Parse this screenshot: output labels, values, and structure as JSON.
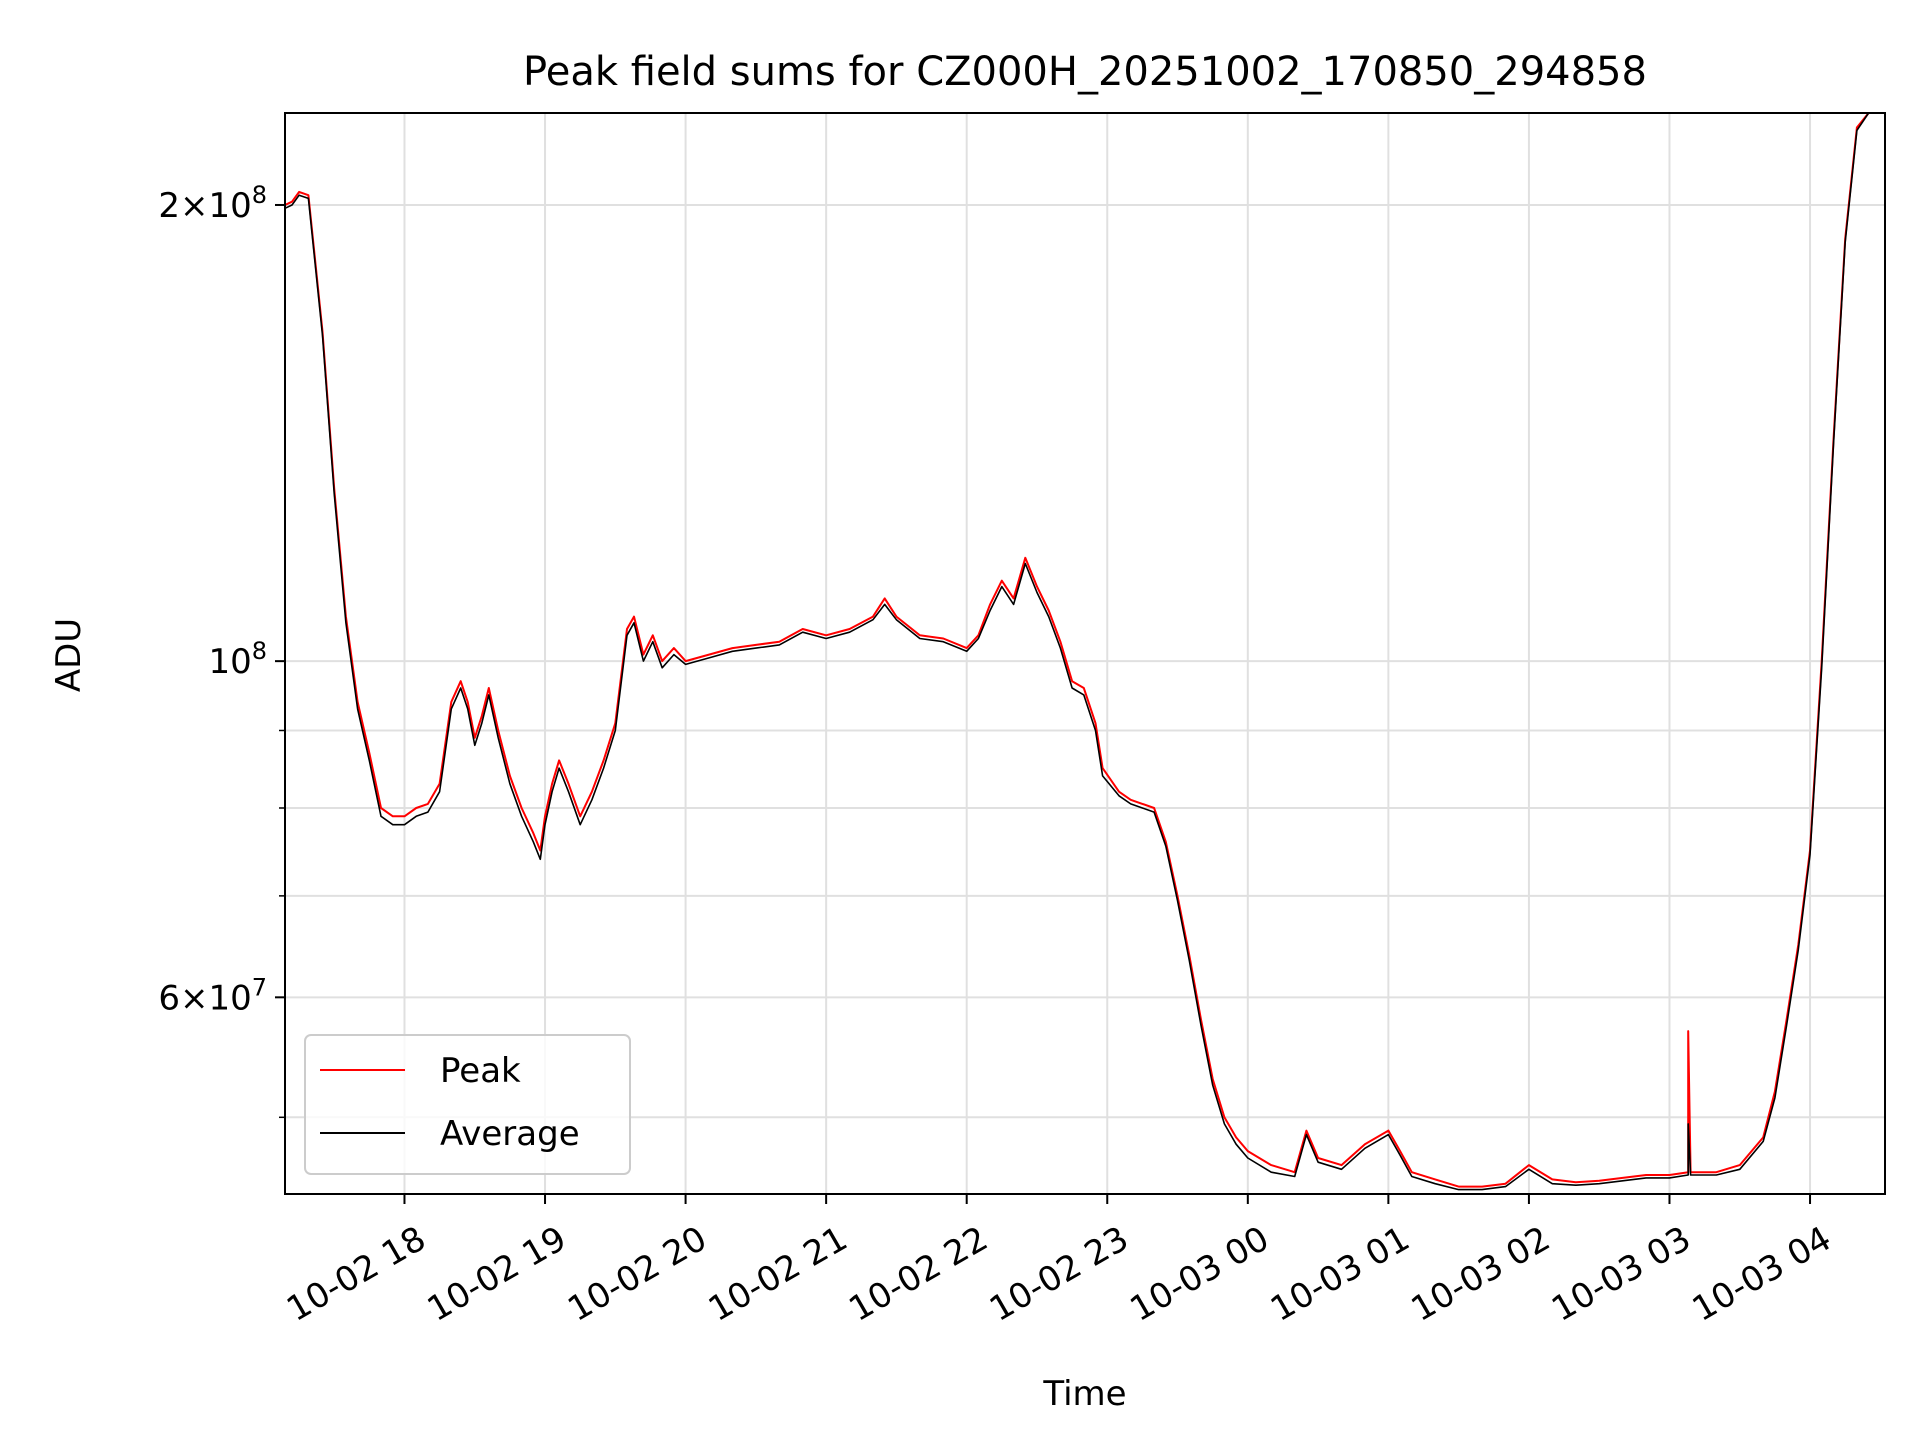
{
  "chart_data": {
    "type": "line",
    "title": "Peak field sums for CZ000H_20251002_170850_294858",
    "xlabel": "Time",
    "ylabel": "ADU",
    "yscale": "log",
    "grid": true,
    "legend_position": "lower-left",
    "xlim": [
      "2025-10-02 17:09",
      "2025-10-03 04:32"
    ],
    "ylim": [
      44500000,
      230000000
    ],
    "x_ticks": [
      {
        "value": "2025-10-02 18:00",
        "label": "10-02 18"
      },
      {
        "value": "2025-10-02 19:00",
        "label": "10-02 19"
      },
      {
        "value": "2025-10-02 20:00",
        "label": "10-02 20"
      },
      {
        "value": "2025-10-02 21:00",
        "label": "10-02 21"
      },
      {
        "value": "2025-10-02 22:00",
        "label": "10-02 22"
      },
      {
        "value": "2025-10-02 23:00",
        "label": "10-02 23"
      },
      {
        "value": "2025-10-03 00:00",
        "label": "10-03 00"
      },
      {
        "value": "2025-10-03 01:00",
        "label": "10-03 01"
      },
      {
        "value": "2025-10-03 02:00",
        "label": "10-03 02"
      },
      {
        "value": "2025-10-03 03:00",
        "label": "10-03 03"
      },
      {
        "value": "2025-10-03 04:00",
        "label": "10-03 04"
      }
    ],
    "y_major_ticks": [
      {
        "value": 60000000,
        "mantissa": "6",
        "exponent": "7"
      },
      {
        "value": 100000000,
        "mantissa": "",
        "exponent": "8"
      },
      {
        "value": 200000000,
        "mantissa": "2",
        "exponent": "8"
      }
    ],
    "y_minor_ticks": [
      50000000,
      70000000,
      80000000,
      90000000
    ],
    "series": [
      {
        "name": "Peak",
        "color": "#ff0000",
        "points": [
          [
            "2025-10-02 17:09",
            200000000
          ],
          [
            "2025-10-02 17:12",
            201000000
          ],
          [
            "2025-10-02 17:15",
            204000000
          ],
          [
            "2025-10-02 17:19",
            203000000
          ],
          [
            "2025-10-02 17:25",
            165000000
          ],
          [
            "2025-10-02 17:30",
            130000000
          ],
          [
            "2025-10-02 17:35",
            107000000
          ],
          [
            "2025-10-02 17:40",
            94000000
          ],
          [
            "2025-10-02 17:45",
            87000000
          ],
          [
            "2025-10-02 17:50",
            80000000
          ],
          [
            "2025-10-02 17:55",
            79000000
          ],
          [
            "2025-10-02 18:00",
            79000000
          ],
          [
            "2025-10-02 18:05",
            80000000
          ],
          [
            "2025-10-02 18:10",
            80500000
          ],
          [
            "2025-10-02 18:15",
            83000000
          ],
          [
            "2025-10-02 18:20",
            94000000
          ],
          [
            "2025-10-02 18:24",
            97000000
          ],
          [
            "2025-10-02 18:27",
            94000000
          ],
          [
            "2025-10-02 18:30",
            89000000
          ],
          [
            "2025-10-02 18:33",
            92000000
          ],
          [
            "2025-10-02 18:36",
            96000000
          ],
          [
            "2025-10-02 18:40",
            90000000
          ],
          [
            "2025-10-02 18:45",
            84000000
          ],
          [
            "2025-10-02 18:50",
            80000000
          ],
          [
            "2025-10-02 18:55",
            77000000
          ],
          [
            "2025-10-02 18:58",
            75000000
          ],
          [
            "2025-10-02 19:00",
            79000000
          ],
          [
            "2025-10-02 19:03",
            83000000
          ],
          [
            "2025-10-02 19:06",
            86000000
          ],
          [
            "2025-10-02 19:10",
            83000000
          ],
          [
            "2025-10-02 19:15",
            79000000
          ],
          [
            "2025-10-02 19:20",
            82000000
          ],
          [
            "2025-10-02 19:25",
            86000000
          ],
          [
            "2025-10-02 19:30",
            91000000
          ],
          [
            "2025-10-02 19:35",
            105000000
          ],
          [
            "2025-10-02 19:38",
            107000000
          ],
          [
            "2025-10-02 19:42",
            101000000
          ],
          [
            "2025-10-02 19:46",
            104000000
          ],
          [
            "2025-10-02 19:50",
            100000000
          ],
          [
            "2025-10-02 19:55",
            102000000
          ],
          [
            "2025-10-02 20:00",
            100000000
          ],
          [
            "2025-10-02 20:10",
            101000000
          ],
          [
            "2025-10-02 20:20",
            102000000
          ],
          [
            "2025-10-02 20:30",
            102500000
          ],
          [
            "2025-10-02 20:40",
            103000000
          ],
          [
            "2025-10-02 20:50",
            105000000
          ],
          [
            "2025-10-02 21:00",
            104000000
          ],
          [
            "2025-10-02 21:10",
            105000000
          ],
          [
            "2025-10-02 21:20",
            107000000
          ],
          [
            "2025-10-02 21:25",
            110000000
          ],
          [
            "2025-10-02 21:30",
            107000000
          ],
          [
            "2025-10-02 21:40",
            104000000
          ],
          [
            "2025-10-02 21:50",
            103500000
          ],
          [
            "2025-10-02 22:00",
            102000000
          ],
          [
            "2025-10-02 22:05",
            104000000
          ],
          [
            "2025-10-02 22:10",
            109000000
          ],
          [
            "2025-10-02 22:15",
            113000000
          ],
          [
            "2025-10-02 22:20",
            110000000
          ],
          [
            "2025-10-02 22:25",
            117000000
          ],
          [
            "2025-10-02 22:30",
            112000000
          ],
          [
            "2025-10-02 22:35",
            108000000
          ],
          [
            "2025-10-02 22:40",
            103000000
          ],
          [
            "2025-10-02 22:45",
            97000000
          ],
          [
            "2025-10-02 22:50",
            96000000
          ],
          [
            "2025-10-02 22:55",
            91000000
          ],
          [
            "2025-10-02 22:58",
            85000000
          ],
          [
            "2025-10-02 23:05",
            82000000
          ],
          [
            "2025-10-02 23:10",
            81000000
          ],
          [
            "2025-10-02 23:15",
            80500000
          ],
          [
            "2025-10-02 23:20",
            80000000
          ],
          [
            "2025-10-02 23:25",
            76000000
          ],
          [
            "2025-10-02 23:30",
            70000000
          ],
          [
            "2025-10-02 23:35",
            64000000
          ],
          [
            "2025-10-02 23:40",
            58000000
          ],
          [
            "2025-10-02 23:45",
            53000000
          ],
          [
            "2025-10-02 23:50",
            50000000
          ],
          [
            "2025-10-02 23:55",
            48500000
          ],
          [
            "2025-10-03 00:00",
            47500000
          ],
          [
            "2025-10-03 00:10",
            46500000
          ],
          [
            "2025-10-03 00:20",
            46000000
          ],
          [
            "2025-10-03 00:25",
            49000000
          ],
          [
            "2025-10-03 00:30",
            47000000
          ],
          [
            "2025-10-03 00:40",
            46500000
          ],
          [
            "2025-10-03 00:50",
            48000000
          ],
          [
            "2025-10-03 01:00",
            49000000
          ],
          [
            "2025-10-03 01:05",
            47500000
          ],
          [
            "2025-10-03 01:10",
            46000000
          ],
          [
            "2025-10-03 01:20",
            45500000
          ],
          [
            "2025-10-03 01:30",
            45000000
          ],
          [
            "2025-10-03 01:40",
            45000000
          ],
          [
            "2025-10-03 01:50",
            45200000
          ],
          [
            "2025-10-03 02:00",
            46500000
          ],
          [
            "2025-10-03 02:10",
            45500000
          ],
          [
            "2025-10-03 02:20",
            45300000
          ],
          [
            "2025-10-03 02:30",
            45400000
          ],
          [
            "2025-10-03 02:40",
            45600000
          ],
          [
            "2025-10-03 02:50",
            45800000
          ],
          [
            "2025-10-03 03:00",
            45800000
          ],
          [
            "2025-10-03 03:08",
            46000000
          ],
          [
            "2025-10-03 03:08",
            57000000
          ],
          [
            "2025-10-03 03:09",
            46000000
          ],
          [
            "2025-10-03 03:20",
            46000000
          ],
          [
            "2025-10-03 03:30",
            46500000
          ],
          [
            "2025-10-03 03:40",
            48500000
          ],
          [
            "2025-10-03 03:45",
            52000000
          ],
          [
            "2025-10-03 03:50",
            58000000
          ],
          [
            "2025-10-03 03:55",
            65000000
          ],
          [
            "2025-10-03 04:00",
            75000000
          ],
          [
            "2025-10-03 04:05",
            100000000
          ],
          [
            "2025-10-03 04:10",
            140000000
          ],
          [
            "2025-10-03 04:15",
            190000000
          ],
          [
            "2025-10-03 04:20",
            225000000
          ],
          [
            "2025-10-03 04:25",
            230000000
          ]
        ]
      },
      {
        "name": "Average",
        "color": "#000000",
        "points": [
          [
            "2025-10-02 17:09",
            199000000
          ],
          [
            "2025-10-02 17:12",
            200000000
          ],
          [
            "2025-10-02 17:15",
            203000000
          ],
          [
            "2025-10-02 17:19",
            202000000
          ],
          [
            "2025-10-02 17:25",
            164000000
          ],
          [
            "2025-10-02 17:30",
            129000000
          ],
          [
            "2025-10-02 17:35",
            106000000
          ],
          [
            "2025-10-02 17:40",
            93000000
          ],
          [
            "2025-10-02 17:45",
            86000000
          ],
          [
            "2025-10-02 17:50",
            79000000
          ],
          [
            "2025-10-02 17:55",
            78000000
          ],
          [
            "2025-10-02 18:00",
            78000000
          ],
          [
            "2025-10-02 18:05",
            79000000
          ],
          [
            "2025-10-02 18:10",
            79500000
          ],
          [
            "2025-10-02 18:15",
            82000000
          ],
          [
            "2025-10-02 18:20",
            93000000
          ],
          [
            "2025-10-02 18:24",
            96000000
          ],
          [
            "2025-10-02 18:27",
            93000000
          ],
          [
            "2025-10-02 18:30",
            88000000
          ],
          [
            "2025-10-02 18:33",
            91000000
          ],
          [
            "2025-10-02 18:36",
            95000000
          ],
          [
            "2025-10-02 18:40",
            89000000
          ],
          [
            "2025-10-02 18:45",
            83000000
          ],
          [
            "2025-10-02 18:50",
            79000000
          ],
          [
            "2025-10-02 18:55",
            76000000
          ],
          [
            "2025-10-02 18:58",
            74000000
          ],
          [
            "2025-10-02 19:00",
            78000000
          ],
          [
            "2025-10-02 19:03",
            82000000
          ],
          [
            "2025-10-02 19:06",
            85000000
          ],
          [
            "2025-10-02 19:10",
            82000000
          ],
          [
            "2025-10-02 19:15",
            78000000
          ],
          [
            "2025-10-02 19:20",
            81000000
          ],
          [
            "2025-10-02 19:25",
            85000000
          ],
          [
            "2025-10-02 19:30",
            90000000
          ],
          [
            "2025-10-02 19:35",
            104000000
          ],
          [
            "2025-10-02 19:38",
            106000000
          ],
          [
            "2025-10-02 19:42",
            100000000
          ],
          [
            "2025-10-02 19:46",
            103000000
          ],
          [
            "2025-10-02 19:50",
            99000000
          ],
          [
            "2025-10-02 19:55",
            101000000
          ],
          [
            "2025-10-02 20:00",
            99500000
          ],
          [
            "2025-10-02 20:10",
            100500000
          ],
          [
            "2025-10-02 20:20",
            101500000
          ],
          [
            "2025-10-02 20:30",
            102000000
          ],
          [
            "2025-10-02 20:40",
            102500000
          ],
          [
            "2025-10-02 20:50",
            104500000
          ],
          [
            "2025-10-02 21:00",
            103500000
          ],
          [
            "2025-10-02 21:10",
            104500000
          ],
          [
            "2025-10-02 21:20",
            106500000
          ],
          [
            "2025-10-02 21:25",
            109000000
          ],
          [
            "2025-10-02 21:30",
            106500000
          ],
          [
            "2025-10-02 21:40",
            103500000
          ],
          [
            "2025-10-02 21:50",
            103000000
          ],
          [
            "2025-10-02 22:00",
            101500000
          ],
          [
            "2025-10-02 22:05",
            103500000
          ],
          [
            "2025-10-02 22:10",
            108000000
          ],
          [
            "2025-10-02 22:15",
            112000000
          ],
          [
            "2025-10-02 22:20",
            109000000
          ],
          [
            "2025-10-02 22:25",
            116000000
          ],
          [
            "2025-10-02 22:30",
            111000000
          ],
          [
            "2025-10-02 22:35",
            107000000
          ],
          [
            "2025-10-02 22:40",
            102000000
          ],
          [
            "2025-10-02 22:45",
            96000000
          ],
          [
            "2025-10-02 22:50",
            95000000
          ],
          [
            "2025-10-02 22:55",
            90000000
          ],
          [
            "2025-10-02 22:58",
            84000000
          ],
          [
            "2025-10-02 23:05",
            81500000
          ],
          [
            "2025-10-02 23:10",
            80500000
          ],
          [
            "2025-10-02 23:15",
            80000000
          ],
          [
            "2025-10-02 23:20",
            79500000
          ],
          [
            "2025-10-02 23:25",
            75500000
          ],
          [
            "2025-10-02 23:30",
            69500000
          ],
          [
            "2025-10-02 23:35",
            63500000
          ],
          [
            "2025-10-02 23:40",
            57500000
          ],
          [
            "2025-10-02 23:45",
            52500000
          ],
          [
            "2025-10-02 23:50",
            49500000
          ],
          [
            "2025-10-02 23:55",
            48000000
          ],
          [
            "2025-10-03 00:00",
            47000000
          ],
          [
            "2025-10-03 00:10",
            46000000
          ],
          [
            "2025-10-03 00:20",
            45700000
          ],
          [
            "2025-10-03 00:25",
            48700000
          ],
          [
            "2025-10-03 00:30",
            46700000
          ],
          [
            "2025-10-03 00:40",
            46200000
          ],
          [
            "2025-10-03 00:50",
            47700000
          ],
          [
            "2025-10-03 01:00",
            48700000
          ],
          [
            "2025-10-03 01:05",
            47200000
          ],
          [
            "2025-10-03 01:10",
            45700000
          ],
          [
            "2025-10-03 01:20",
            45200000
          ],
          [
            "2025-10-03 01:30",
            44800000
          ],
          [
            "2025-10-03 01:40",
            44800000
          ],
          [
            "2025-10-03 01:50",
            45000000
          ],
          [
            "2025-10-03 02:00",
            46200000
          ],
          [
            "2025-10-03 02:10",
            45200000
          ],
          [
            "2025-10-03 02:20",
            45100000
          ],
          [
            "2025-10-03 02:30",
            45200000
          ],
          [
            "2025-10-03 02:40",
            45400000
          ],
          [
            "2025-10-03 02:50",
            45600000
          ],
          [
            "2025-10-03 03:00",
            45600000
          ],
          [
            "2025-10-03 03:08",
            45800000
          ],
          [
            "2025-10-03 03:08",
            49500000
          ],
          [
            "2025-10-03 03:09",
            45800000
          ],
          [
            "2025-10-03 03:20",
            45800000
          ],
          [
            "2025-10-03 03:30",
            46200000
          ],
          [
            "2025-10-03 03:40",
            48200000
          ],
          [
            "2025-10-03 03:45",
            51500000
          ],
          [
            "2025-10-03 03:50",
            57500000
          ],
          [
            "2025-10-03 03:55",
            64500000
          ],
          [
            "2025-10-03 04:00",
            74500000
          ],
          [
            "2025-10-03 04:05",
            99000000
          ],
          [
            "2025-10-03 04:10",
            139000000
          ],
          [
            "2025-10-03 04:15",
            189000000
          ],
          [
            "2025-10-03 04:20",
            224000000
          ],
          [
            "2025-10-03 04:25",
            230000000
          ]
        ]
      }
    ]
  }
}
